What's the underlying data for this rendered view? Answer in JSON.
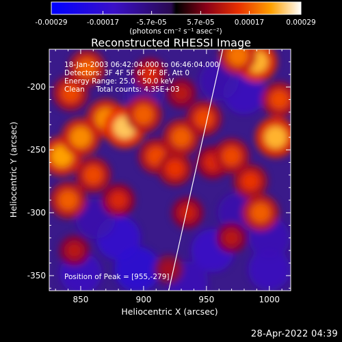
{
  "chart_data": {
    "type": "heatmap",
    "title": "Reconstructed RHESSI Image",
    "xlabel": "Heliocentric X (arcsec)",
    "ylabel": "Heliocentric Y (arcsec)",
    "xlim": [
      825,
      1017
    ],
    "ylim": [
      -362,
      -170
    ],
    "x_ticks": [
      850,
      900,
      950,
      1000
    ],
    "x_tick_labels": [
      "850",
      "900",
      "950",
      "1000"
    ],
    "y_ticks": [
      -200,
      -250,
      -300,
      -350
    ],
    "y_tick_labels": [
      "-200",
      "-250",
      "-300",
      "-350"
    ],
    "colorbar": {
      "range": [
        -0.00029,
        0.00029
      ],
      "ticks": [
        -0.00029,
        -0.00017,
        -5.7e-05,
        5.7e-05,
        0.00017,
        0.00029
      ],
      "tick_labels": [
        "-0.00029",
        "-0.00017",
        "-5.7e-05",
        "5.7e-05",
        "0.00017",
        "0.00029"
      ],
      "units_label": "(photons cm⁻² s⁻¹ asec⁻²)"
    },
    "annotations": [
      "18-Jan-2003 06:42:04.000 to 06:46:04.000",
      "Detectors: 3F 4F 5F 6F 7F 8F, Att 0",
      "Energy Range: 25.0 - 50.0 keV",
      "Clean     Total counts: 4.35E+03"
    ],
    "peak_label": "Position of Peak = [955,-279]",
    "limb_line": {
      "x": [
        920,
        963
      ],
      "y": [
        -362,
        -170
      ]
    },
    "grid": false,
    "hotspots": [
      {
        "x": 842,
        "y": -205,
        "v": 0.55
      },
      {
        "x": 855,
        "y": -185,
        "v": 0.6
      },
      {
        "x": 835,
        "y": -255,
        "v": 0.75
      },
      {
        "x": 850,
        "y": -240,
        "v": 0.7
      },
      {
        "x": 870,
        "y": -225,
        "v": 0.7
      },
      {
        "x": 885,
        "y": -232,
        "v": 0.85
      },
      {
        "x": 900,
        "y": -222,
        "v": 0.6
      },
      {
        "x": 860,
        "y": -270,
        "v": 0.55
      },
      {
        "x": 880,
        "y": -290,
        "v": 0.45
      },
      {
        "x": 840,
        "y": -290,
        "v": 0.6
      },
      {
        "x": 910,
        "y": -255,
        "v": 0.55
      },
      {
        "x": 925,
        "y": -265,
        "v": 0.5
      },
      {
        "x": 930,
        "y": -240,
        "v": 0.6
      },
      {
        "x": 905,
        "y": -190,
        "v": 0.45
      },
      {
        "x": 930,
        "y": -205,
        "v": 0.35
      },
      {
        "x": 948,
        "y": -225,
        "v": 0.55
      },
      {
        "x": 955,
        "y": -260,
        "v": 0.45
      },
      {
        "x": 970,
        "y": -255,
        "v": 0.55
      },
      {
        "x": 985,
        "y": -275,
        "v": 0.5
      },
      {
        "x": 993,
        "y": -300,
        "v": 0.6
      },
      {
        "x": 970,
        "y": -320,
        "v": 0.35
      },
      {
        "x": 990,
        "y": -180,
        "v": 0.8
      },
      {
        "x": 975,
        "y": -175,
        "v": 0.65
      },
      {
        "x": 1005,
        "y": -240,
        "v": 0.8
      },
      {
        "x": 1008,
        "y": -210,
        "v": 0.55
      },
      {
        "x": 845,
        "y": -330,
        "v": 0.35
      },
      {
        "x": 920,
        "y": -345,
        "v": 0.3
      },
      {
        "x": 935,
        "y": -300,
        "v": 0.4
      }
    ],
    "coldspots": [
      {
        "x": 880,
        "y": -320,
        "v": -0.55
      },
      {
        "x": 895,
        "y": -345,
        "v": -0.6
      },
      {
        "x": 850,
        "y": -348,
        "v": -0.45
      },
      {
        "x": 955,
        "y": -330,
        "v": -0.5
      },
      {
        "x": 980,
        "y": -205,
        "v": -0.45
      },
      {
        "x": 960,
        "y": -195,
        "v": -0.35
      },
      {
        "x": 900,
        "y": -205,
        "v": -0.3
      },
      {
        "x": 1000,
        "y": -345,
        "v": -0.45
      },
      {
        "x": 975,
        "y": -300,
        "v": -0.35
      },
      {
        "x": 1000,
        "y": -320,
        "v": -0.4
      },
      {
        "x": 862,
        "y": -305,
        "v": -0.35
      },
      {
        "x": 935,
        "y": -355,
        "v": -0.4
      }
    ]
  },
  "footer": {
    "date": "28-Apr-2022 04:39"
  }
}
